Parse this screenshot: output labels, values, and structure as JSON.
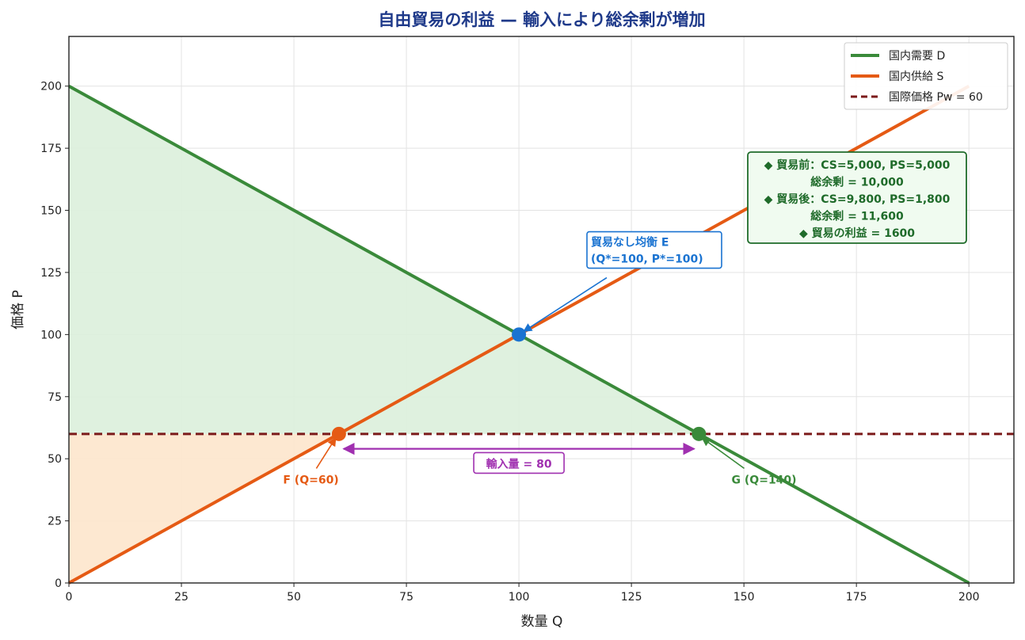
{
  "colors": {
    "demand": "#3a8a3a",
    "supply": "#e55a14",
    "world_price": "#7b1a1a",
    "equilibrium": "#1a73d1",
    "imports": "#a030b0",
    "cs_fill": "#dcefdc",
    "ps_fill": "#fde5cc",
    "summary": "#1f6b2a",
    "summary_bg": "#f0fbf0",
    "title": "#1f3a8a"
  },
  "chart_data": {
    "type": "line",
    "title": "自由貿易の利益 — 輸入により総余剰が増加",
    "xlabel": "数量 Q",
    "ylabel": "価格 P",
    "xlim": [
      0,
      210
    ],
    "ylim": [
      0,
      220
    ],
    "xticks": [
      0,
      25,
      50,
      75,
      100,
      125,
      150,
      175,
      200
    ],
    "yticks": [
      0,
      25,
      50,
      75,
      100,
      125,
      150,
      175,
      200
    ],
    "grid": true,
    "legend_position": "top-right",
    "series": [
      {
        "name": "国内需要 D",
        "x": [
          0,
          200
        ],
        "y": [
          200,
          0
        ],
        "style": "solid"
      },
      {
        "name": "国内供給 S",
        "x": [
          0,
          200
        ],
        "y": [
          0,
          200
        ],
        "style": "solid"
      },
      {
        "name": "国際価格 Pw = 60",
        "x": [
          0,
          210
        ],
        "y": [
          60,
          60
        ],
        "style": "dashed"
      }
    ],
    "shaded_regions": [
      {
        "label": "consumer_surplus",
        "points": [
          [
            0,
            200
          ],
          [
            140,
            60
          ],
          [
            0,
            60
          ]
        ]
      },
      {
        "label": "producer_surplus",
        "points": [
          [
            0,
            0
          ],
          [
            60,
            60
          ],
          [
            0,
            60
          ]
        ]
      }
    ],
    "points": [
      {
        "id": "E",
        "x": 100,
        "y": 100
      },
      {
        "id": "F",
        "x": 60,
        "y": 60
      },
      {
        "id": "G",
        "x": 140,
        "y": 60
      }
    ],
    "annotations": {
      "equilibrium": {
        "lines": [
          "貿易なし均衡 E",
          "(Q*=100, P*=100)"
        ],
        "target": [
          100,
          100
        ],
        "text_at": [
          116,
          128
        ]
      },
      "point_f": {
        "text": "F (Q=60)",
        "target": [
          60,
          60
        ],
        "text_at": [
          49,
          41
        ]
      },
      "point_g": {
        "text": "G (Q=140)",
        "target": [
          140,
          60
        ],
        "text_at": [
          155,
          41
        ]
      },
      "imports": {
        "text": "輸入量 = 80",
        "from": [
          60,
          54
        ],
        "to": [
          140,
          54
        ],
        "text_at": [
          100,
          48
        ]
      },
      "summary": {
        "lines": [
          "◆ 貿易前：CS=5,000, PS=5,000",
          "総余剰 = 10,000",
          "◆ 貿易後：CS=9,800, PS=1,800",
          "総余剰 = 11,600",
          "◆ 貿易の利益 = 1600"
        ]
      }
    }
  }
}
